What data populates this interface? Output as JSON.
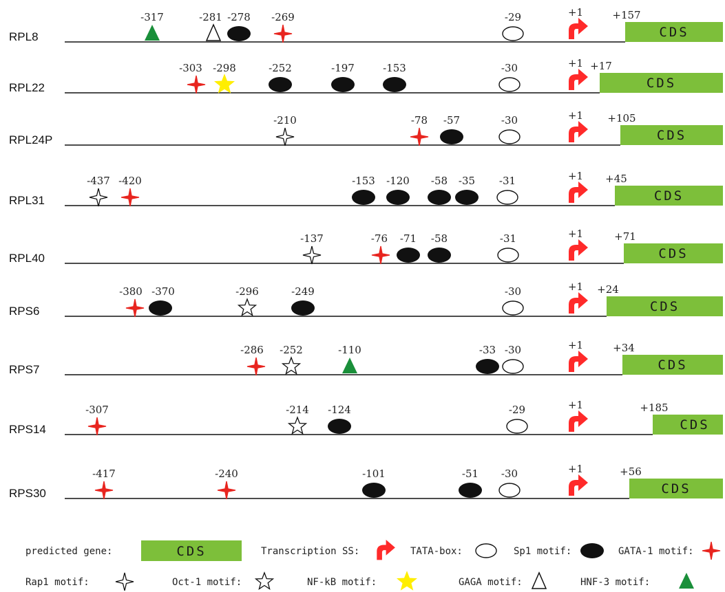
{
  "colors": {
    "cds": "#7dbf3a",
    "tss": "#ff2a2a",
    "gata1": "#e8251f",
    "sp1": "#111111",
    "nfkb": "#ffee00",
    "hnf3": "#1a8f3a",
    "line": "#111111"
  },
  "genes": [
    {
      "name": "RPL8",
      "tss_label": "+1",
      "cds_label": "CDS",
      "cds_start_label": "+157",
      "motifs": [
        {
          "type": "hnf3",
          "label": "-317"
        },
        {
          "type": "gaga",
          "label": "-281"
        },
        {
          "type": "sp1",
          "label": "-278"
        },
        {
          "type": "gata1",
          "label": "-269"
        },
        {
          "type": "tata",
          "label": "-29"
        }
      ]
    },
    {
      "name": "RPL22",
      "tss_label": "+1",
      "cds_label": "CDS",
      "cds_start_label": "+17",
      "motifs": [
        {
          "type": "gata1",
          "label": "-303"
        },
        {
          "type": "nfkb",
          "label": "-298"
        },
        {
          "type": "sp1",
          "label": "-252"
        },
        {
          "type": "sp1",
          "label": "-197"
        },
        {
          "type": "sp1",
          "label": "-153"
        },
        {
          "type": "tata",
          "label": "-30"
        }
      ]
    },
    {
      "name": "RPL24P",
      "tss_label": "+1",
      "cds_label": "CDS",
      "cds_start_label": "+105",
      "motifs": [
        {
          "type": "rap1",
          "label": "-210"
        },
        {
          "type": "gata1",
          "label": "-78"
        },
        {
          "type": "sp1",
          "label": "-57"
        },
        {
          "type": "tata",
          "label": "-30"
        }
      ]
    },
    {
      "name": "RPL31",
      "tss_label": "+1",
      "cds_label": "CDS",
      "cds_start_label": "+45",
      "motifs": [
        {
          "type": "rap1",
          "label": "-437"
        },
        {
          "type": "gata1",
          "label": "-420"
        },
        {
          "type": "sp1",
          "label": "-153"
        },
        {
          "type": "sp1",
          "label": "-120"
        },
        {
          "type": "sp1",
          "label": "-58"
        },
        {
          "type": "sp1",
          "label": "-35"
        },
        {
          "type": "tata",
          "label": "-31"
        }
      ]
    },
    {
      "name": "RPL40",
      "tss_label": "+1",
      "cds_label": "CDS",
      "cds_start_label": "+71",
      "motifs": [
        {
          "type": "rap1",
          "label": "-137"
        },
        {
          "type": "gata1",
          "label": "-76"
        },
        {
          "type": "sp1",
          "label": "-71"
        },
        {
          "type": "sp1",
          "label": "-58"
        },
        {
          "type": "tata",
          "label": "-31"
        }
      ]
    },
    {
      "name": "RPS6",
      "tss_label": "+1",
      "cds_label": "CDS",
      "cds_start_label": "+24",
      "motifs": [
        {
          "type": "gata1",
          "label": "-380"
        },
        {
          "type": "sp1",
          "label": "-370"
        },
        {
          "type": "oct1",
          "label": "-296"
        },
        {
          "type": "sp1",
          "label": "-249"
        },
        {
          "type": "tata",
          "label": "-30"
        }
      ]
    },
    {
      "name": "RPS7",
      "tss_label": "+1",
      "cds_label": "CDS",
      "cds_start_label": "+34",
      "motifs": [
        {
          "type": "gata1",
          "label": "-286"
        },
        {
          "type": "oct1",
          "label": "-252"
        },
        {
          "type": "hnf3",
          "label": "-110"
        },
        {
          "type": "sp1",
          "label": "-33"
        },
        {
          "type": "tata",
          "label": "-30"
        }
      ]
    },
    {
      "name": "RPS14",
      "tss_label": "+1",
      "cds_label": "CDS",
      "cds_start_label": "+185",
      "motifs": [
        {
          "type": "gata1",
          "label": "-307"
        },
        {
          "type": "oct1",
          "label": "-214"
        },
        {
          "type": "sp1",
          "label": "-124"
        },
        {
          "type": "tata",
          "label": "-29"
        }
      ]
    },
    {
      "name": "RPS30",
      "tss_label": "+1",
      "cds_label": "CDS",
      "cds_start_label": "+56",
      "motifs": [
        {
          "type": "gata1",
          "label": "-417"
        },
        {
          "type": "gata1",
          "label": "-240"
        },
        {
          "type": "sp1",
          "label": "-101"
        },
        {
          "type": "sp1",
          "label": "-51"
        },
        {
          "type": "tata",
          "label": "-30"
        }
      ]
    }
  ],
  "legend": {
    "row1": [
      {
        "label": "predicted gene:",
        "symbol": "cds",
        "symbol_text": "CDS"
      },
      {
        "label": "Transcription SS:",
        "symbol": "tss"
      },
      {
        "label": "TATA-box:",
        "symbol": "tata"
      },
      {
        "label": "Sp1 motif:",
        "symbol": "sp1"
      },
      {
        "label": "GATA-1 motif:",
        "symbol": "gata1"
      }
    ],
    "row2": [
      {
        "label": "Rap1 motif:",
        "symbol": "rap1"
      },
      {
        "label": "Oct-1 motif:",
        "symbol": "oct1"
      },
      {
        "label": "NF-kB motif:",
        "symbol": "nfkb"
      },
      {
        "label": "GAGA motif:",
        "symbol": "gaga"
      },
      {
        "label": "HNF-3 motif:",
        "symbol": "hnf3"
      }
    ]
  }
}
